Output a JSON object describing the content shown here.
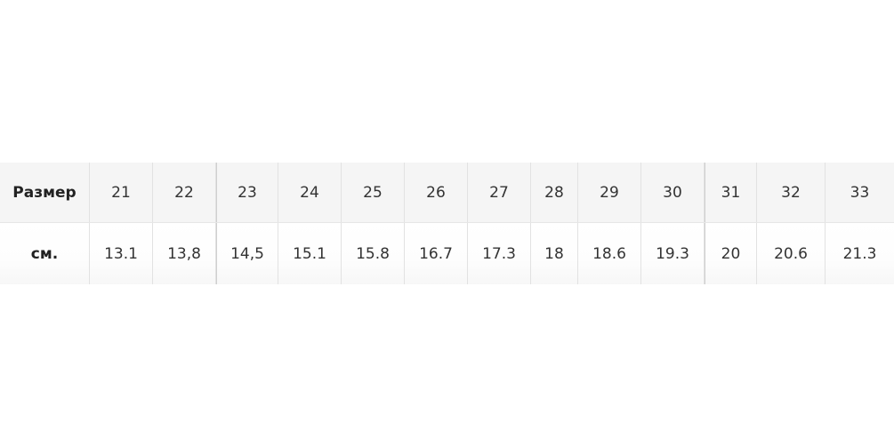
{
  "table": {
    "rows": [
      [
        "Размер",
        "21",
        "22",
        "23",
        "24",
        "25",
        "26",
        "27",
        "28",
        "29",
        "30",
        "31",
        "32",
        "33"
      ],
      [
        "см.",
        "13.1",
        "13,8",
        "14,5",
        "15.1",
        "15.8",
        "16.7",
        "17.3",
        "18",
        "18.6",
        "19.3",
        "20",
        "20.6",
        "21.3"
      ]
    ]
  }
}
